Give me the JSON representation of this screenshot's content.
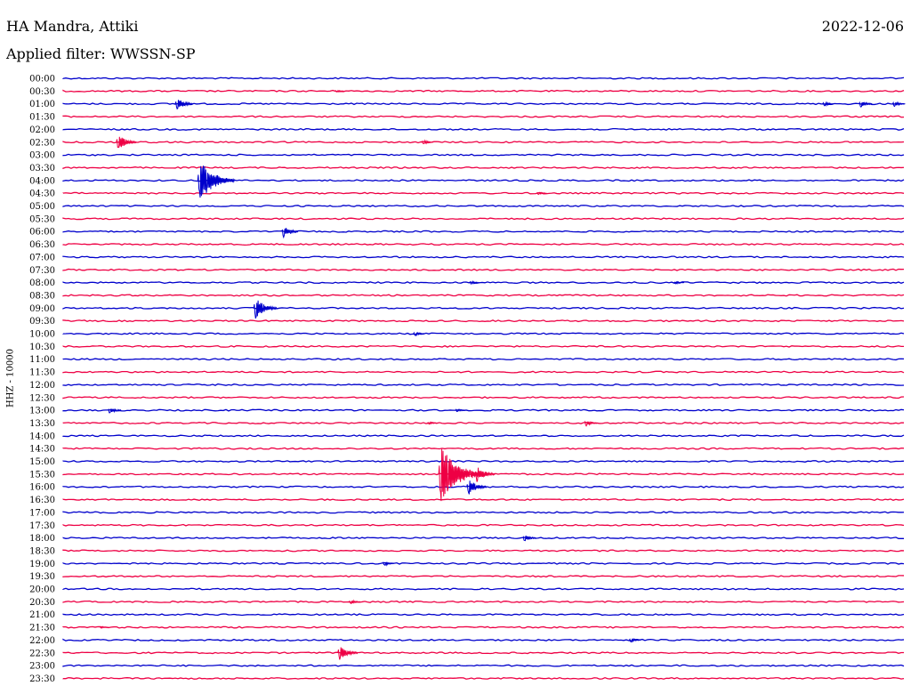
{
  "header": {
    "station": "HA Mandra, Attiki",
    "date": "2022-12-06",
    "filter": "Applied filter: WWSSN-SP"
  },
  "chart_data": {
    "type": "helicorder",
    "channel_label": "HHZ - 10000",
    "colors": {
      "odd": "#0000cc",
      "even": "#ee0044"
    },
    "row_labels": [
      "00:00",
      "00:30",
      "01:00",
      "01:30",
      "02:00",
      "02:30",
      "03:00",
      "03:30",
      "04:00",
      "04:30",
      "05:00",
      "05:30",
      "06:00",
      "06:30",
      "07:00",
      "07:30",
      "08:00",
      "08:30",
      "09:00",
      "09:30",
      "10:00",
      "10:30",
      "11:00",
      "11:30",
      "12:00",
      "12:30",
      "13:00",
      "13:30",
      "14:00",
      "14:30",
      "15:00",
      "15:30",
      "16:00",
      "16:30",
      "17:00",
      "17:30",
      "18:00",
      "18:30",
      "19:00",
      "19:30",
      "20:00",
      "20:30",
      "21:00",
      "21:30",
      "22:00",
      "22:30",
      "23:00",
      "23:30"
    ],
    "events": [
      {
        "row": 1,
        "minute": 9.7,
        "amplitude": 2
      },
      {
        "row": 2,
        "minute": 4.0,
        "amplitude": 10
      },
      {
        "row": 2,
        "minute": 27.1,
        "amplitude": 4
      },
      {
        "row": 2,
        "minute": 28.4,
        "amplitude": 6
      },
      {
        "row": 2,
        "minute": 29.6,
        "amplitude": 5
      },
      {
        "row": 5,
        "minute": 1.9,
        "amplitude": 12
      },
      {
        "row": 5,
        "minute": 12.8,
        "amplitude": 4
      },
      {
        "row": 8,
        "minute": 4.8,
        "amplitude": 28
      },
      {
        "row": 9,
        "minute": 16.9,
        "amplitude": 3
      },
      {
        "row": 12,
        "minute": 7.8,
        "amplitude": 9
      },
      {
        "row": 16,
        "minute": 14.5,
        "amplitude": 3
      },
      {
        "row": 16,
        "minute": 21.8,
        "amplitude": 3
      },
      {
        "row": 18,
        "minute": 6.8,
        "amplitude": 15
      },
      {
        "row": 20,
        "minute": 12.5,
        "amplitude": 4
      },
      {
        "row": 26,
        "minute": 1.6,
        "amplitude": 6
      },
      {
        "row": 26,
        "minute": 14.0,
        "amplitude": 3
      },
      {
        "row": 27,
        "minute": 13.0,
        "amplitude": 3
      },
      {
        "row": 27,
        "minute": 18.6,
        "amplitude": 5
      },
      {
        "row": 31,
        "minute": 13.4,
        "amplitude": 36
      },
      {
        "row": 31,
        "minute": 14.7,
        "amplitude": 12
      },
      {
        "row": 32,
        "minute": 14.4,
        "amplitude": 12
      },
      {
        "row": 36,
        "minute": 16.4,
        "amplitude": 6
      },
      {
        "row": 38,
        "minute": 11.4,
        "amplitude": 4
      },
      {
        "row": 41,
        "minute": 10.2,
        "amplitude": 4
      },
      {
        "row": 43,
        "minute": 1.3,
        "amplitude": 2
      },
      {
        "row": 44,
        "minute": 20.2,
        "amplitude": 4
      },
      {
        "row": 45,
        "minute": 9.8,
        "amplitude": 12
      }
    ]
  }
}
